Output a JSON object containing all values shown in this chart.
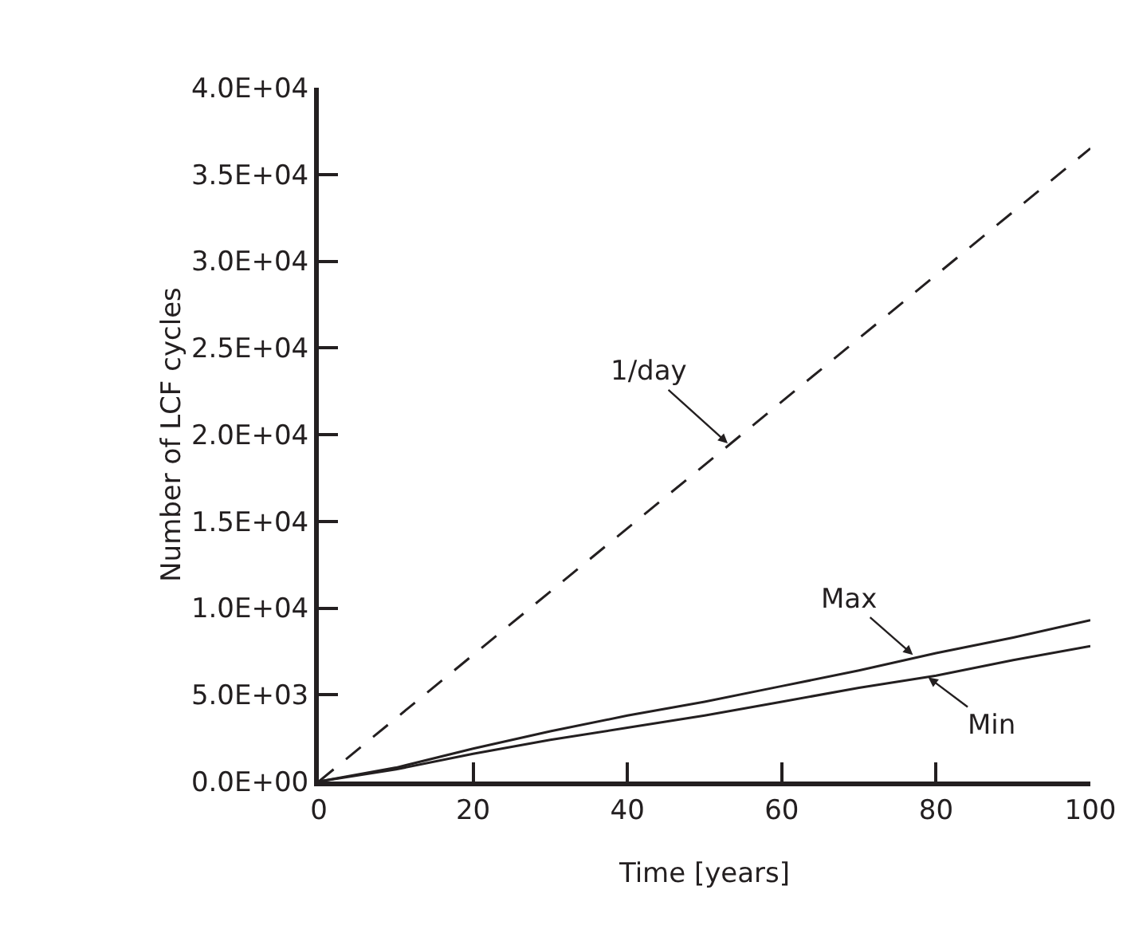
{
  "chart_data": {
    "type": "line",
    "xlabel": "Time [years]",
    "ylabel": "Number of LCF cycles",
    "xlim": [
      0,
      100
    ],
    "xticks": [
      0,
      20,
      40,
      60,
      80,
      100
    ],
    "ylim": [
      0,
      40000
    ],
    "yticks": [
      {
        "value": 0,
        "label": "0.0E+00"
      },
      {
        "value": 5000,
        "label": "5.0E+03"
      },
      {
        "value": 10000,
        "label": "1.0E+04"
      },
      {
        "value": 15000,
        "label": "1.5E+04"
      },
      {
        "value": 20000,
        "label": "2.0E+04"
      },
      {
        "value": 25000,
        "label": "2.5E+04"
      },
      {
        "value": 30000,
        "label": "3.0E+04"
      },
      {
        "value": 35000,
        "label": "3.5E+04"
      },
      {
        "value": 40000,
        "label": "4.0E+04"
      }
    ],
    "grid": false,
    "series": [
      {
        "color": "#231f20",
        "line_style": "dashed",
        "x": [
          0,
          100
        ],
        "values": [
          0,
          36500
        ]
      },
      {
        "color": "#231f20",
        "line_style": "solid",
        "x": [
          0,
          10,
          20,
          30,
          40,
          50,
          60,
          70,
          80,
          90,
          100
        ],
        "values": [
          0,
          800,
          1900,
          2900,
          3800,
          4600,
          5500,
          6400,
          7400,
          8300,
          9300
        ]
      },
      {
        "color": "#231f20",
        "line_style": "solid",
        "x": [
          0,
          10,
          20,
          30,
          40,
          50,
          60,
          70,
          80,
          90,
          100
        ],
        "values": [
          0,
          700,
          1600,
          2400,
          3100,
          3800,
          4600,
          5400,
          6100,
          7000,
          7800
        ]
      }
    ],
    "annotations": [
      {
        "text": "1/day",
        "x": 53,
        "y": 19500
      },
      {
        "text": "Max",
        "x": 77,
        "y": 7300
      },
      {
        "text": "Min",
        "x": 79,
        "y": 6000
      }
    ]
  }
}
